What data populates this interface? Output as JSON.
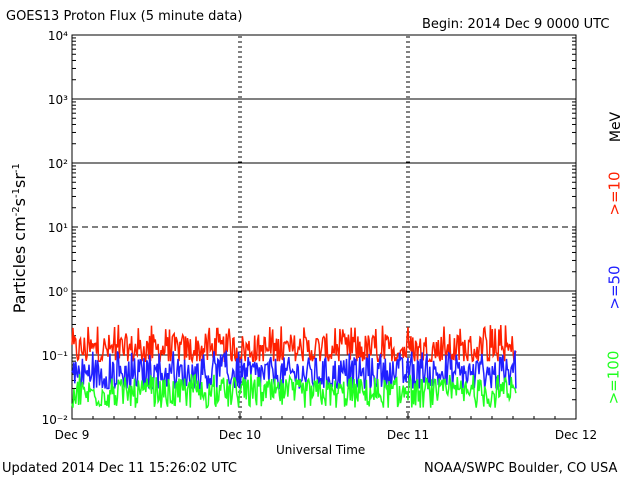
{
  "header": {
    "title": "GOES13 Proton Flux (5 minute data)",
    "begin": "Begin: 2014 Dec 9 0000 UTC"
  },
  "footer": {
    "updated": "Updated 2014 Dec 11 15:26:02 UTC",
    "source": "NOAA/SWPC Boulder, CO USA"
  },
  "legend": {
    "unit": "MeV",
    "items": [
      {
        "label": ">=10",
        "color": "#ff2000"
      },
      {
        "label": ">=50",
        "color": "#2020ff"
      },
      {
        "label": ">=100",
        "color": "#20ff20"
      }
    ]
  },
  "chart_data": {
    "type": "line",
    "title": "GOES13 Proton Flux (5 minute data)",
    "xlabel": "Universal Time",
    "ylabel": "Particles cm⁻²s⁻¹sr⁻¹",
    "yscale": "log",
    "ylim": [
      0.01,
      10000
    ],
    "y_ticks": [
      "10⁻²",
      "10⁻¹",
      "10⁰",
      "10¹",
      "10²",
      "10³",
      "10⁴"
    ],
    "x_ticks": [
      "Dec 9",
      "Dec 10",
      "Dec 11",
      "Dec 12"
    ],
    "xlim": [
      "2014-12-09 00:00",
      "2014-12-12 00:00"
    ],
    "data_end": "2014-12-11 15:25",
    "threshold_line_y": 10,
    "grid": true,
    "series": [
      {
        "name": ">=10 MeV",
        "color": "#ff2000",
        "range": [
          0.08,
          0.3
        ],
        "typical": 0.12
      },
      {
        "name": ">=50 MeV",
        "color": "#2020ff",
        "range": [
          0.03,
          0.12
        ],
        "typical": 0.05
      },
      {
        "name": ">=100 MeV",
        "color": "#20ff20",
        "range": [
          0.015,
          0.05
        ],
        "typical": 0.025
      }
    ]
  }
}
